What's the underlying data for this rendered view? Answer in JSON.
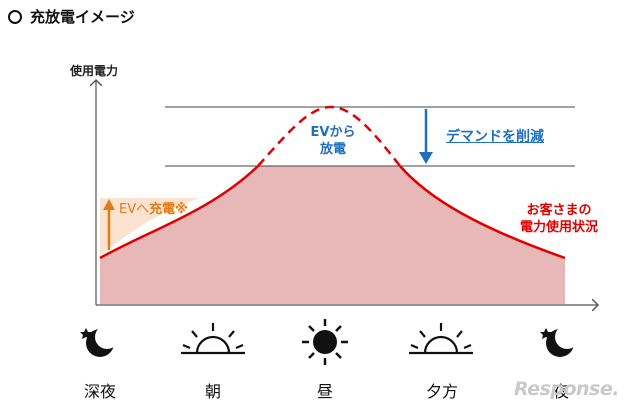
{
  "title": "充放電イメージ",
  "y_axis_label": "使用電力",
  "labels": {
    "ev_discharge_line1": "EVから",
    "ev_discharge_line2": "放電",
    "demand_cut": "デマンドを削減",
    "ev_charge_prefix": "EVへ",
    "ev_charge_bold": "充電※",
    "customer_line1": "お客さまの",
    "customer_line2": "電力使用状況"
  },
  "times": [
    "深夜",
    "朝",
    "昼",
    "夕方",
    "夜"
  ],
  "icons": [
    "moon-star-icon",
    "sunrise-icon",
    "sun-icon",
    "sunset-icon",
    "moon-star-icon"
  ],
  "watermark": "Response.",
  "colors": {
    "usage_curve": "#e00000",
    "usage_fill": "#e7b8b7",
    "charge_fill": "#fbe3d0",
    "charge_arrow": "#e07b1a",
    "demand_arrow": "#1f6fbf"
  }
}
